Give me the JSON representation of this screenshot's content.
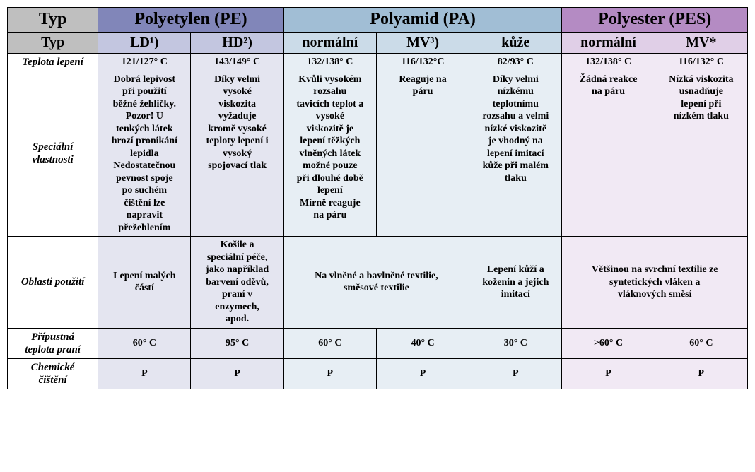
{
  "colors": {
    "grey": "#bfbfbf",
    "pe": "#8186b9",
    "pe_lt": "#c3c6e0",
    "pe_cell": "#e4e5f0",
    "pa": "#a1bed5",
    "pa_lt": "#cbdbe8",
    "pa_cell": "#e7eef4",
    "pes": "#b48bc3",
    "pes_lt": "#e0cfe7",
    "pes_cell": "#f1e9f4",
    "border": "#000000"
  },
  "fonts": {
    "family": "Times New Roman",
    "header_main_pt": 24,
    "header_sub_pt": 20,
    "rowlabel_pt": 15,
    "cell_pt": 14
  },
  "header": {
    "typ": "Typ",
    "pe": "Polyetylen (PE)",
    "pa": "Polyamid (PA)",
    "pes": "Polyester (PES)",
    "sub": {
      "typ": "Typ",
      "pe_ld": "LD¹)",
      "pe_hd": "HD²)",
      "pa_norm": "normální",
      "pa_mv": "MV³)",
      "pa_kuze": "kůže",
      "pes_norm": "normální",
      "pes_mv": "MV*"
    }
  },
  "rows": {
    "teplota_lepeni": {
      "label": "Teplota lepení",
      "pe_ld": "121/127° C",
      "pe_hd": "143/149° C",
      "pa_norm": "132/138° C",
      "pa_mv": "116/132°C",
      "pa_kuze": "82/93° C",
      "pes_norm": "132/138° C",
      "pes_mv": "116/132° C"
    },
    "specialni_vlastnosti": {
      "label": "Speciální\nvlastnosti",
      "pe_ld": "Dobrá lepivost\npři použití\nběžné žehličky.\nPozor! U\ntenkých látek\nhrozí pronikání\nlepidla\nNedostatečnou\npevnost spoje\npo suchém\nčištění lze\nnapravit\npřežehlením",
      "pe_hd": "Díky velmi\nvysoké\nviskozita\nvyžaduje\nkromě vysoké\nteploty lepení i\nvysoký\nspojovací tlak",
      "pa_norm": "Kvůli vysokém\nrozsahu\ntavicích teplot a\nvysoké\nviskozitě je\nlepení těžkých\nvlněných látek\nmožné pouze\npři dlouhé době\nlepení\nMírně reaguje\nna páru",
      "pa_mv": "Reaguje na\npáru",
      "pa_kuze": "Díky velmi\nnízkému\nteplotnímu\nrozsahu a velmi\nnízké viskozitě\nje vhodný na\nlepení imitací\nkůže při malém\ntlaku",
      "pes_norm": "Žádná reakce\nna páru",
      "pes_mv": "Nízká viskozita\nusnadňuje\nlepení při\nnízkém tlaku"
    },
    "oblasti_pouziti": {
      "label": "Oblasti použití",
      "pe_ld": "Lepení malých\nčástí",
      "pe_hd": "Košile a\nspeciální péče,\njako například\nbarvení oděvů,\npraní v\nenzymech,\napod.",
      "pa_norm_mv": "Na vlněné a bavlněné textilie,\nsměsové textilie",
      "pa_kuze": "Lepení kůží a\nkoženin a jejich\nimitací",
      "pes_both": "Většinou na svrchní textilie ze\nsyntetických vláken a\nvláknových směsí"
    },
    "teplota_prani": {
      "label": "Přípustná\nteplota praní",
      "pe_ld": "60° C",
      "pe_hd": "95° C",
      "pa_norm": "60° C",
      "pa_mv": "40° C",
      "pa_kuze": "30° C",
      "pes_norm": ">60° C",
      "pes_mv": "60° C"
    },
    "chemicke": {
      "label": "Chemické\nčištění",
      "pe_ld": "P",
      "pe_hd": "P",
      "pa_norm": "P",
      "pa_mv": "P",
      "pa_kuze": "P",
      "pes_norm": "P",
      "pes_mv": "P"
    }
  }
}
